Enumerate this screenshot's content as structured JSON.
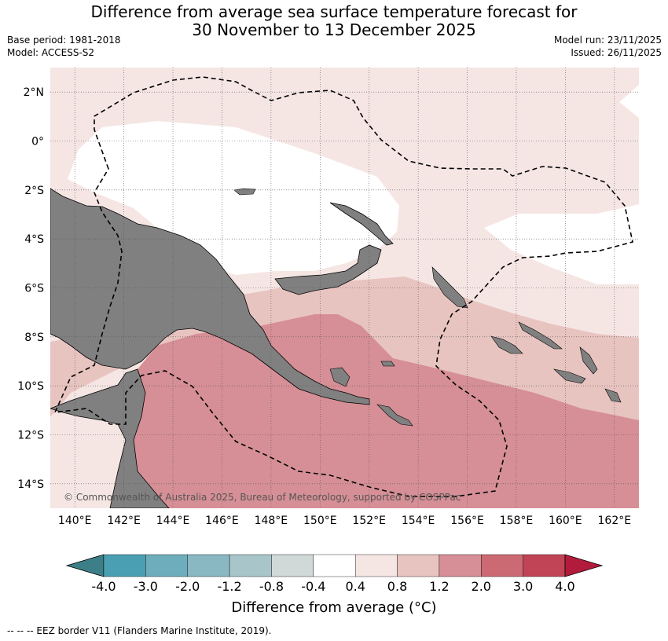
{
  "header": {
    "title_line1": "Difference from average sea surface temperature forecast for",
    "title_line2": "30 November to 13 December 2025",
    "base_period": "Base period: 1981-2018",
    "model": "Model: ACCESS-S2",
    "model_run": "Model run: 23/11/2025",
    "issued": "Issued: 26/11/2025"
  },
  "map": {
    "lon_range": [
      139,
      163
    ],
    "lat_range": [
      -15,
      3
    ],
    "lat_labels": [
      {
        "value": 2,
        "label": "2°N"
      },
      {
        "value": 0,
        "label": "0°"
      },
      {
        "value": -2,
        "label": "2°S"
      },
      {
        "value": -4,
        "label": "4°S"
      },
      {
        "value": -6,
        "label": "6°S"
      },
      {
        "value": -8,
        "label": "8°S"
      },
      {
        "value": -10,
        "label": "10°S"
      },
      {
        "value": -12,
        "label": "12°S"
      },
      {
        "value": -14,
        "label": "14°S"
      }
    ],
    "lon_labels": [
      {
        "value": 140,
        "label": "140°E"
      },
      {
        "value": 142,
        "label": "142°E"
      },
      {
        "value": 144,
        "label": "144°E"
      },
      {
        "value": 146,
        "label": "146°E"
      },
      {
        "value": 148,
        "label": "148°E"
      },
      {
        "value": 150,
        "label": "150°E"
      },
      {
        "value": 152,
        "label": "152°E"
      },
      {
        "value": 154,
        "label": "154°E"
      },
      {
        "value": 156,
        "label": "156°E"
      },
      {
        "value": 158,
        "label": "158°E"
      },
      {
        "value": 160,
        "label": "160°E"
      },
      {
        "value": 162,
        "label": "162°E"
      }
    ],
    "copyright": "© Commonwealth of Australia 2025, Bureau of Meteorology, supported by COSPPac"
  },
  "colorbar": {
    "title": "Difference from average (°C)",
    "labels": [
      "-4.0",
      "-3.0",
      "-2.0",
      "-1.2",
      "-0.8",
      "-0.4",
      "0.4",
      "0.8",
      "1.2",
      "2.0",
      "3.0",
      "4.0"
    ],
    "low_arrow_color": "#3d7f89",
    "high_arrow_color": "#b31b3c",
    "colors": [
      "#4aa0b2",
      "#6eaebc",
      "#8ab8c2",
      "#a8c6ca",
      "#d0d8d8",
      "#ffffff",
      "#f5e6e4",
      "#e8c4c0",
      "#d68f96",
      "#cc6a74",
      "#c04455"
    ]
  },
  "legend": {
    "eez_label": "--  --  -- EEZ border V11 (Flanders Marine Institute, 2019)."
  },
  "palette": {
    "land": "#808080",
    "band_0_4_to_0_8": "#f5e6e4",
    "band_0_8_to_1_2": "#e8c4c0",
    "band_1_2_to_2_0": "#d68f96",
    "neutral": "#ffffff"
  }
}
